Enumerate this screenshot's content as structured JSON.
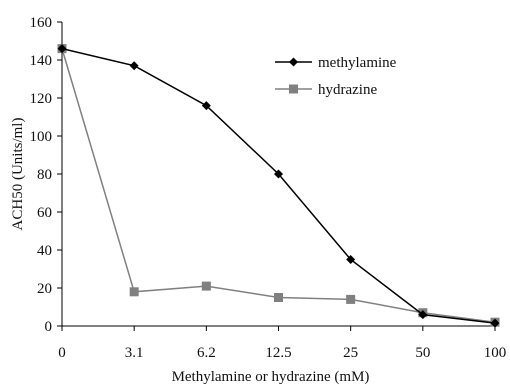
{
  "chart_data": {
    "type": "line",
    "categories": [
      "0",
      "3.1",
      "6.2",
      "12.5",
      "25",
      "50",
      "100"
    ],
    "xlabel": "Methylamine or hydrazine (mM)",
    "ylabel": "ACH50 (Units/ml)",
    "ylim": [
      0,
      160
    ],
    "yticks": [
      0,
      20,
      40,
      60,
      80,
      100,
      120,
      140,
      160
    ],
    "grid": false,
    "legend_position": "top-right",
    "series": [
      {
        "name": "methylamine",
        "values": [
          146,
          137,
          116,
          80,
          35,
          6,
          1.5
        ],
        "color": "#000000",
        "marker": "diamond"
      },
      {
        "name": "hydrazine",
        "values": [
          146,
          18,
          21,
          15,
          14,
          7,
          2
        ],
        "color": "#808080",
        "marker": "square"
      }
    ]
  }
}
